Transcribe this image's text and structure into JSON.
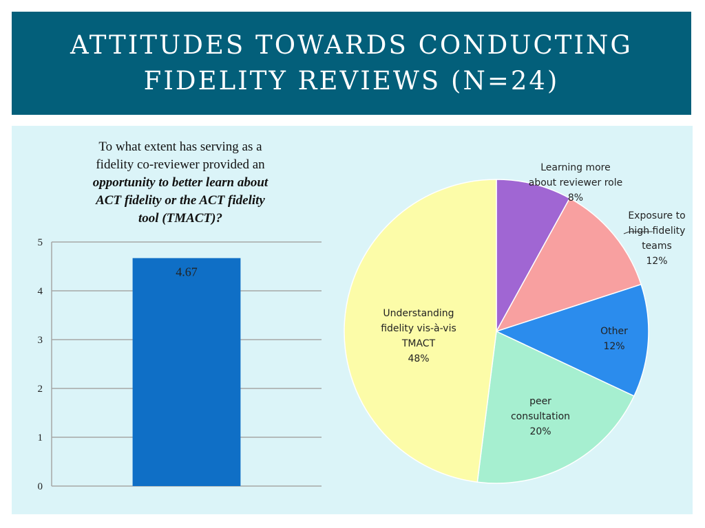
{
  "title": {
    "line1": "ATTITUDES TOWARDS CONDUCTING",
    "line2": "FIDELITY REVIEWS (N=24)"
  },
  "question": {
    "line1": "To what extent has serving as a",
    "line2": "fidelity co-reviewer provided  an",
    "line3_emph": "opportunity to better learn about",
    "line4_emph": "ACT fidelity or the ACT fidelity",
    "line5_emph": "tool (TMACT)?"
  },
  "colors": {
    "title_band": "#035f7a",
    "content_bg": "#dbf4f8",
    "bar": "#0f6fc6",
    "gridline": "#a6a6a6"
  },
  "chart_data": [
    {
      "type": "bar",
      "categories": [
        ""
      ],
      "values": [
        4.67
      ],
      "data_labels": [
        "4.67"
      ],
      "ylim": [
        0,
        5
      ],
      "yticks": [
        "0",
        "1",
        "2",
        "3",
        "4",
        "5"
      ],
      "grid": true,
      "color": "#0f6fc6"
    },
    {
      "type": "pie",
      "slices": [
        {
          "label_lines": [
            "Learning more",
            "about reviewer role",
            "8%"
          ],
          "value": 8,
          "color": "#a066d3"
        },
        {
          "label_lines": [
            "Exposure to",
            "high fidelity",
            "teams",
            "12%"
          ],
          "value": 12,
          "color": "#f8a0a0"
        },
        {
          "label_lines": [
            "Other",
            "12%"
          ],
          "value": 12,
          "color": "#2b8ced"
        },
        {
          "label_lines": [
            "peer",
            "consultation",
            "20%"
          ],
          "value": 20,
          "color": "#a6efd0"
        },
        {
          "label_lines": [
            "Understanding",
            "fidelity vis-à-vis",
            "TMACT",
            "48%"
          ],
          "value": 48,
          "color": "#fcfca8"
        }
      ]
    }
  ]
}
